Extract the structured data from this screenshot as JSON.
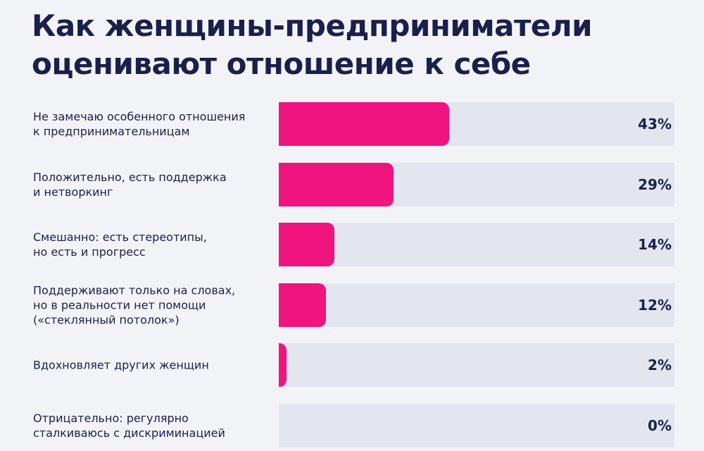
{
  "chart_data": {
    "type": "bar",
    "orientation": "horizontal",
    "title": "Как женщины-предприниматели\nоценивают отношение к себе",
    "categories": [
      "Не замечаю особенного отношения\nк предпринимательницам",
      "Положительно, есть поддержка\nи нетворкинг",
      "Смешанно: есть стереотипы,\nно есть и прогресс",
      "Поддерживают только на словах,\nно в реальности нет помощи\n(«стеклянный потолок»)",
      "Вдохновляет других женщин",
      "Отрицательно: регулярно\nсталкиваюсь с дискриминацией"
    ],
    "values": [
      43,
      29,
      14,
      12,
      2,
      0
    ],
    "value_labels": [
      "43%",
      "29%",
      "14%",
      "12%",
      "2%",
      "0%"
    ],
    "color": "#f0147e",
    "xlim": [
      0,
      100
    ]
  }
}
